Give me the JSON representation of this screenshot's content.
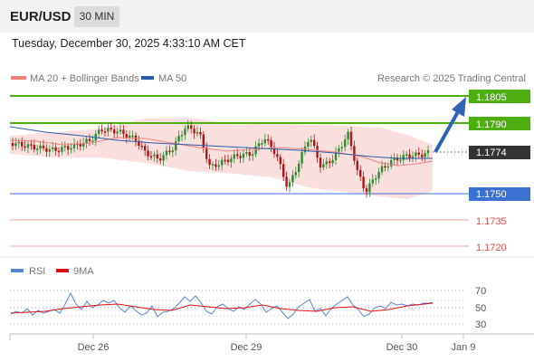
{
  "header": {
    "pair": "EUR/USD",
    "timeframe": "30 MIN"
  },
  "datetime": "Tuesday, December 30, 2025 4:33:10 AM CET",
  "legend": {
    "ma20": "MA 20 + Bollinger Bands",
    "ma50": "MA 50",
    "credit": "Research © 2025 Trading Central"
  },
  "levels": {
    "r2": "1.1805",
    "r1": "1.1790",
    "last": "1.1774",
    "s1": "1.1750",
    "s2": "1.1735",
    "s3": "1.1720"
  },
  "rsi": {
    "label": "RSI",
    "ma_label": "9MA",
    "ticks": [
      "70",
      "50",
      "30"
    ]
  },
  "xaxis": [
    "Dec 26",
    "Dec 29",
    "Dec 30",
    "Jan 9"
  ],
  "colors": {
    "resistance": "#4caf0f",
    "support": "#3a72d4",
    "minor_support": "#e04b4b",
    "bollinger": "#f9d9d9",
    "ma20": "#f08080",
    "ma50": "#2b5aa8",
    "candle_up": "#2e8b2e",
    "candle_down": "#b01515",
    "arrow": "#2f63b5"
  }
}
